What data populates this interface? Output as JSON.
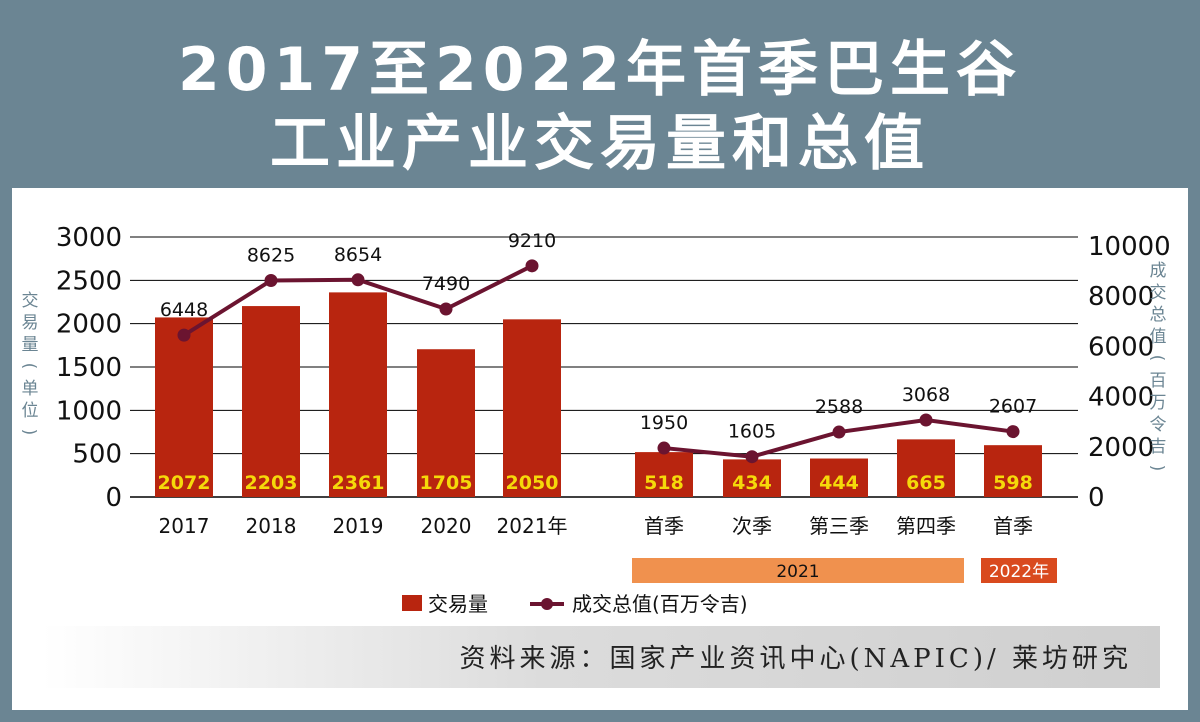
{
  "title": {
    "line1": "2017至2022年首季巴生谷",
    "line2": "工业产业交易量和总值"
  },
  "source": "资料来源：国家产业资讯中心(NAPIC)/ 莱坊研究",
  "colors": {
    "frame": "#6b8593",
    "bar": "#b8250f",
    "bar_label": "#f5d90a",
    "line": "#6b1430",
    "period_2021": "#f0914e",
    "period_2022": "#d94a1e",
    "axis_label": "#6b8593"
  },
  "chart_data": {
    "type": "bar+line",
    "categories": [
      "2017",
      "2018",
      "2019",
      "2020",
      "2021年",
      "首季",
      "次季",
      "第三季",
      "第四季",
      "首季"
    ],
    "series": [
      {
        "name": "交易量",
        "type": "bar",
        "axis": "left",
        "values": [
          2072,
          2203,
          2361,
          1705,
          2050,
          518,
          434,
          444,
          665,
          598
        ]
      },
      {
        "name": "成交总值(百万令吉)",
        "type": "line",
        "axis": "right",
        "groups": [
          {
            "indices": [
              0,
              1,
              2,
              3,
              4
            ],
            "values": [
              6448,
              8625,
              8654,
              7490,
              9210
            ]
          },
          {
            "indices": [
              5,
              6,
              7,
              8,
              9
            ],
            "values": [
              1950,
              1605,
              2588,
              3068,
              2607
            ]
          }
        ]
      }
    ],
    "ylabel_left": "交易量(单位)",
    "ylabel_right": "成交总值(百万令吉)",
    "ylim_left": [
      0,
      3000
    ],
    "yticks_left": [
      "0",
      "500",
      "1000",
      "1500",
      "2000",
      "2500",
      "3000"
    ],
    "ylim_right": [
      0,
      10000
    ],
    "yticks_right": [
      "0",
      "2000",
      "4000",
      "6000",
      "8000",
      "10000"
    ],
    "period_labels": [
      {
        "label": "2021",
        "span": [
          5,
          8
        ]
      },
      {
        "label": "2022年",
        "span": [
          9,
          9
        ]
      }
    ],
    "legend": {
      "placement": "bottom-center",
      "items": [
        "交易量",
        "成交总值(百万令吉)"
      ]
    },
    "grid": true
  }
}
